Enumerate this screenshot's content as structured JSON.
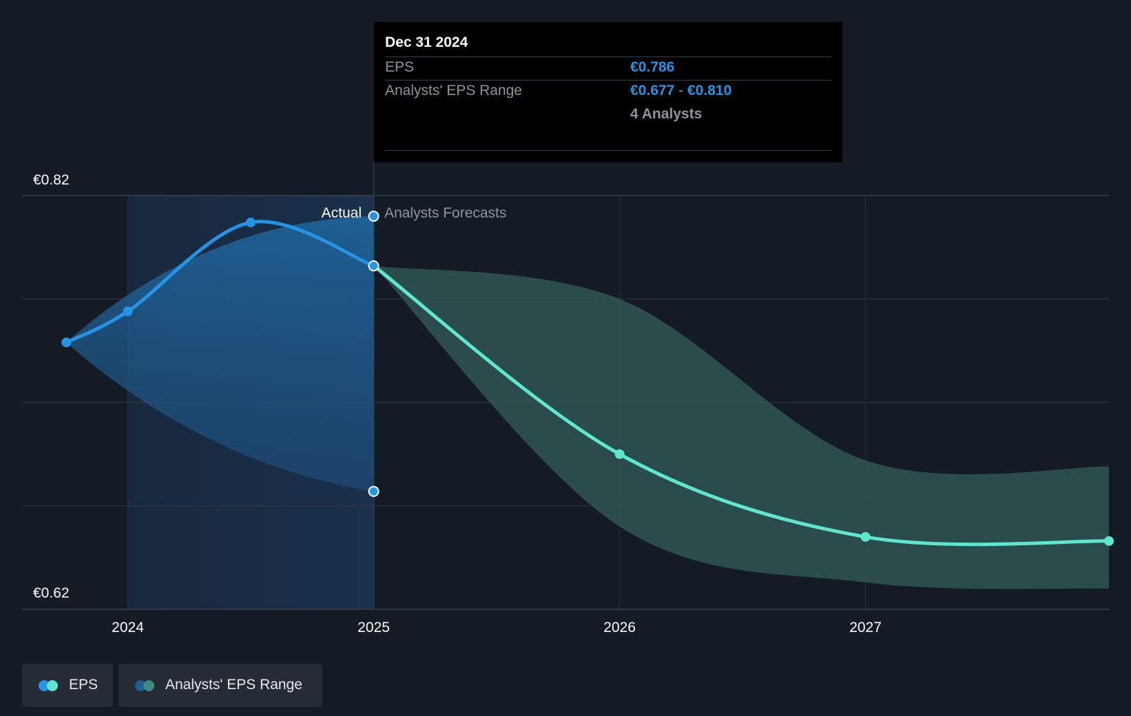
{
  "colors": {
    "background": "#151b24",
    "eps_actual": "#2394e6",
    "eps_forecast": "#5ee6cf",
    "range_actual": "#1f6aa3",
    "range_forecast": "#2e5552",
    "grid": "#333a45",
    "axis_text": "#ffffff"
  },
  "tooltip": {
    "date": "Dec 31 2024",
    "eps_label": "EPS",
    "eps_value": "€0.786",
    "range_label": "Analysts' EPS Range",
    "range_low": "€0.677",
    "range_sep": "-",
    "range_high": "€0.810",
    "analysts": "4 Analysts"
  },
  "labels": {
    "actual": "Actual",
    "forecast": "Analysts Forecasts"
  },
  "legend": {
    "eps": "EPS",
    "range": "Analysts' EPS Range"
  },
  "chart_data": {
    "type": "line",
    "ylabel_top": "€0.82",
    "ylabel_bottom": "€0.62",
    "ylim": [
      0.62,
      0.82
    ],
    "x_ticks": [
      {
        "label": "2024",
        "x": 2024.0
      },
      {
        "label": "2025",
        "x": 2025.0
      },
      {
        "label": "2026",
        "x": 2026.0
      },
      {
        "label": "2027",
        "x": 2027.0
      }
    ],
    "xlim": [
      2023.57,
      2027.99
    ],
    "divider_x": 2025.0,
    "highlight_start_x": 2024.0,
    "series": [
      {
        "name": "EPS",
        "segment": "actual",
        "points": [
          {
            "x": 2023.75,
            "y": 0.749
          },
          {
            "x": 2024.0,
            "y": 0.764
          },
          {
            "x": 2024.5,
            "y": 0.807
          },
          {
            "x": 2025.0,
            "y": 0.786
          }
        ]
      },
      {
        "name": "EPS",
        "segment": "forecast",
        "points": [
          {
            "x": 2025.0,
            "y": 0.786
          },
          {
            "x": 2026.0,
            "y": 0.695
          },
          {
            "x": 2027.0,
            "y": 0.655
          },
          {
            "x": 2027.99,
            "y": 0.653
          }
        ]
      }
    ],
    "range_actual": {
      "upper": [
        {
          "x": 2023.75,
          "y": 0.749
        },
        {
          "x": 2025.0,
          "y": 0.81
        }
      ],
      "lower": [
        {
          "x": 2023.75,
          "y": 0.749
        },
        {
          "x": 2025.0,
          "y": 0.677
        }
      ]
    },
    "range_forecast": {
      "upper": [
        {
          "x": 2025.0,
          "y": 0.786
        },
        {
          "x": 2026.0,
          "y": 0.77
        },
        {
          "x": 2027.0,
          "y": 0.692
        },
        {
          "x": 2027.99,
          "y": 0.689
        }
      ],
      "lower": [
        {
          "x": 2025.0,
          "y": 0.786
        },
        {
          "x": 2026.0,
          "y": 0.66
        },
        {
          "x": 2027.0,
          "y": 0.633
        },
        {
          "x": 2027.99,
          "y": 0.63
        }
      ]
    }
  }
}
